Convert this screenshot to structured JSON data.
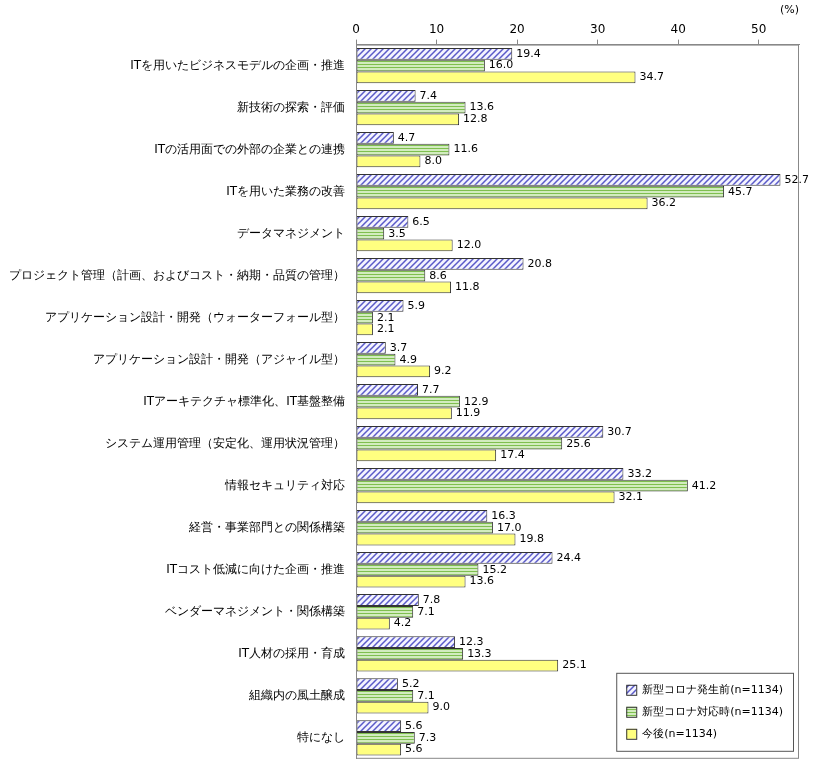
{
  "chart_data": {
    "type": "bar",
    "orientation": "horizontal",
    "x_label": "(%)",
    "categories": [
      "ITを用いたビジネスモデルの企画・推進",
      "新技術の探索・評価",
      "ITの活用面での外部の企業との連携",
      "ITを用いた業務の改善",
      "データマネジメント",
      "プロジェクト管理（計画、およびコスト・納期・品質の管理）",
      "アプリケーション設計・開発（ウォーターフォール型）",
      "アプリケーション設計・開発（アジャイル型）",
      "ITアーキテクチャ標準化、IT基盤整備",
      "システム運用管理（安定化、運用状況管理）",
      "情報セキュリティ対応",
      "経営・事業部門との関係構築",
      "ITコスト低減に向けた企画・推進",
      "ベンダーマネジメント・関係構築",
      "IT人材の採用・育成",
      "組織内の風土醸成",
      "特になし"
    ],
    "series": [
      {
        "name": "新型コロナ発生前(n=1134)",
        "color": "#5a5ac8",
        "values": [
          19.4,
          7.4,
          4.7,
          52.7,
          6.5,
          20.8,
          5.9,
          3.7,
          7.7,
          30.7,
          33.2,
          16.3,
          24.4,
          7.8,
          12.3,
          5.2,
          5.6
        ],
        "value_labels": [
          "19.4",
          "7.4",
          "4.7",
          "52.7",
          "6.5",
          "20.8",
          "5.9",
          "3.7",
          "7.7",
          "30.7",
          "33.2",
          "16.3",
          "24.4",
          "7.8",
          "12.3",
          "5.2",
          "5.6"
        ]
      },
      {
        "name": "新型コロナ対応時(n=1134)",
        "color": "#7fbf4f",
        "values": [
          16.0,
          13.6,
          11.6,
          45.7,
          3.5,
          8.6,
          2.1,
          4.9,
          12.9,
          25.6,
          41.2,
          17.0,
          15.2,
          7.1,
          13.3,
          7.1,
          7.3
        ],
        "value_labels": [
          "16.0",
          "13.6",
          "11.6",
          "45.7",
          "3.5",
          "8.6",
          "2.1",
          "4.9",
          "12.9",
          "25.6",
          "41.2",
          "17.0",
          "15.2",
          "7.1",
          "13.3",
          "7.1",
          "7.3"
        ]
      },
      {
        "name": "今後(n=1134)",
        "color": "#ffff80",
        "values": [
          34.7,
          12.8,
          8.0,
          36.2,
          12.0,
          11.8,
          2.1,
          9.2,
          11.9,
          17.4,
          32.1,
          19.8,
          13.6,
          4.2,
          25.1,
          9.0,
          5.6
        ],
        "value_labels": [
          "34.7",
          "12.8",
          "8.0",
          "36.2",
          "12.0",
          "11.8",
          "2.1",
          "9.2",
          "11.9",
          "17.4",
          "32.1",
          "19.8",
          "13.6",
          "4.2",
          "25.1",
          "9.0",
          "5.6"
        ]
      }
    ],
    "xlim": [
      0,
      55
    ],
    "xticks": [
      0,
      10,
      20,
      30,
      40,
      50
    ],
    "grid": false,
    "data_labels": true,
    "legend": "lower right"
  }
}
